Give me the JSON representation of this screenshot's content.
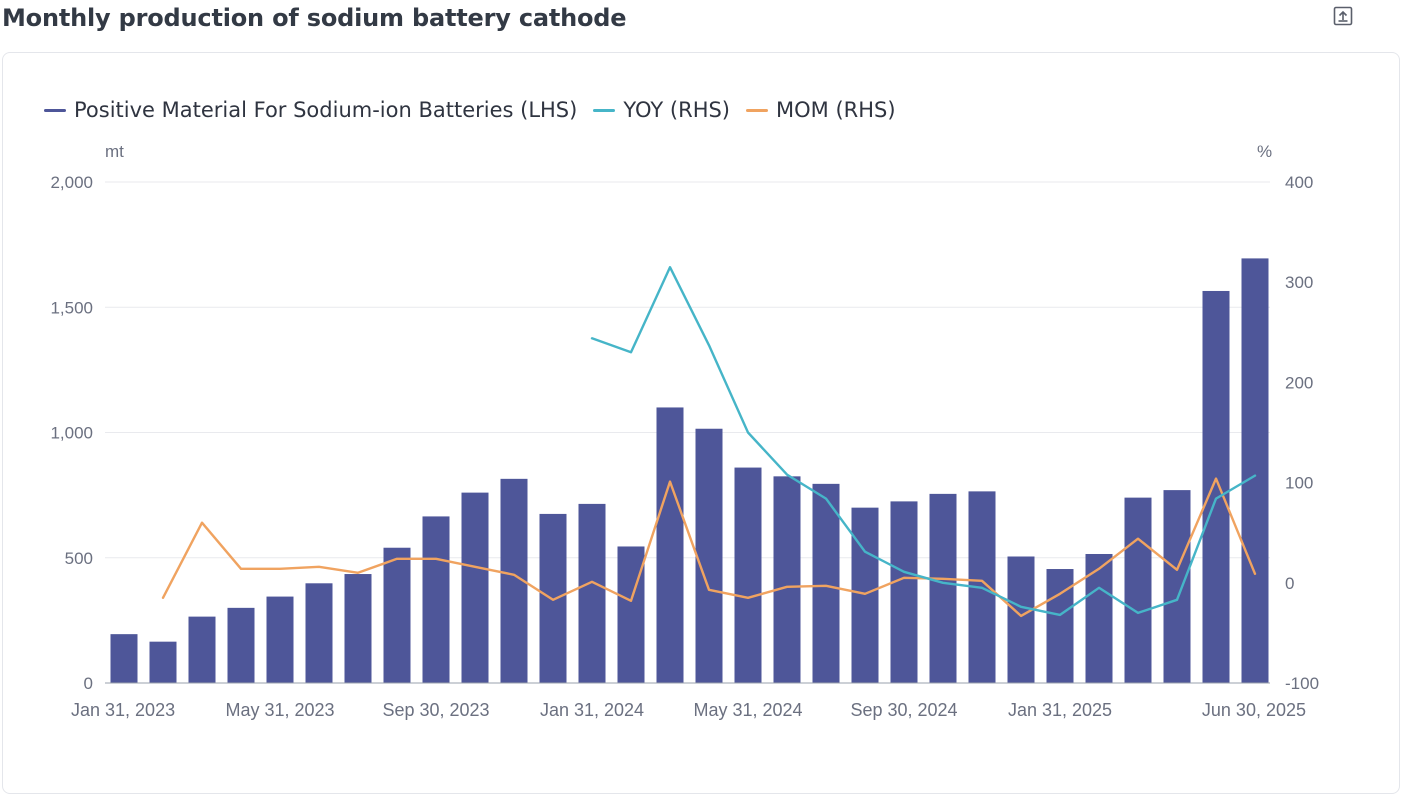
{
  "page": {
    "title": "Monthly production of sodium battery cathode",
    "export_icon": "export-icon"
  },
  "legend": [
    {
      "label": "Positive Material For Sodium-ion Batteries (LHS)",
      "color": "#4e5699"
    },
    {
      "label": "YOY (RHS)",
      "color": "#46b5c8"
    },
    {
      "label": "MOM (RHS)",
      "color": "#f0a360"
    }
  ],
  "colors": {
    "bar": "#4e5699",
    "yoy": "#46b5c8",
    "mom": "#f0a360",
    "grid": "#e9eaee"
  },
  "chart_data": {
    "type": "bar",
    "title": "Monthly production of sodium battery cathode",
    "left_axis": {
      "unit": "mt",
      "ticks": [
        "2,000",
        "1,500",
        "1,000",
        "500",
        "0"
      ],
      "ylim": [
        0,
        2000
      ]
    },
    "right_axis": {
      "unit": "%",
      "ticks": [
        "400",
        "300",
        "200",
        "100",
        "0",
        "-100"
      ],
      "ylim": [
        -100,
        400
      ]
    },
    "x_tick_labels": [
      "Jan 31, 2023",
      "May 31, 2023",
      "Sep 30, 2023",
      "Jan 31, 2024",
      "May 31, 2024",
      "Sep 30, 2024",
      "Jan 31, 2025",
      "Jun 30, 2025"
    ],
    "categories": [
      "Jan 31, 2023",
      "Feb 28, 2023",
      "Mar 31, 2023",
      "Apr 30, 2023",
      "May 31, 2023",
      "Jun 30, 2023",
      "Jul 31, 2023",
      "Aug 31, 2023",
      "Sep 30, 2023",
      "Oct 31, 2023",
      "Nov 30, 2023",
      "Dec 31, 2023",
      "Jan 31, 2024",
      "Feb 29, 2024",
      "Mar 31, 2024",
      "Apr 30, 2024",
      "May 31, 2024",
      "Jun 30, 2024",
      "Jul 31, 2024",
      "Aug 31, 2024",
      "Sep 30, 2024",
      "Oct 31, 2024",
      "Nov 30, 2024",
      "Dec 31, 2024",
      "Jan 31, 2025",
      "Feb 28, 2025",
      "Mar 31, 2025",
      "Apr 30, 2025",
      "May 31, 2025",
      "Jun 30, 2025"
    ],
    "series": [
      {
        "name": "Positive Material For Sodium-ion Batteries (LHS)",
        "type": "bar",
        "axis": "left",
        "values": [
          195,
          165,
          265,
          300,
          345,
          398,
          435,
          540,
          665,
          760,
          815,
          675,
          715,
          545,
          1100,
          1015,
          860,
          825,
          795,
          700,
          725,
          755,
          765,
          505,
          455,
          515,
          740,
          770,
          1565,
          1695
        ]
      },
      {
        "name": "YOY (RHS)",
        "type": "line",
        "axis": "right",
        "values": [
          null,
          null,
          null,
          null,
          null,
          null,
          null,
          null,
          null,
          null,
          null,
          null,
          244,
          230,
          315,
          237,
          150,
          108,
          84,
          31,
          11,
          0,
          -5,
          -24,
          -32,
          -5,
          -30,
          -17,
          84,
          107
        ]
      },
      {
        "name": "MOM (RHS)",
        "type": "line",
        "axis": "right",
        "values": [
          null,
          -15,
          60,
          14,
          14,
          16,
          10,
          24,
          24,
          16,
          8,
          -17,
          1,
          -18,
          101,
          -7,
          -15,
          -4,
          -3,
          -11,
          5,
          4,
          2,
          -33,
          -11,
          14,
          44,
          13,
          104,
          9
        ]
      }
    ],
    "legend_position": "top-left",
    "grid": true
  }
}
